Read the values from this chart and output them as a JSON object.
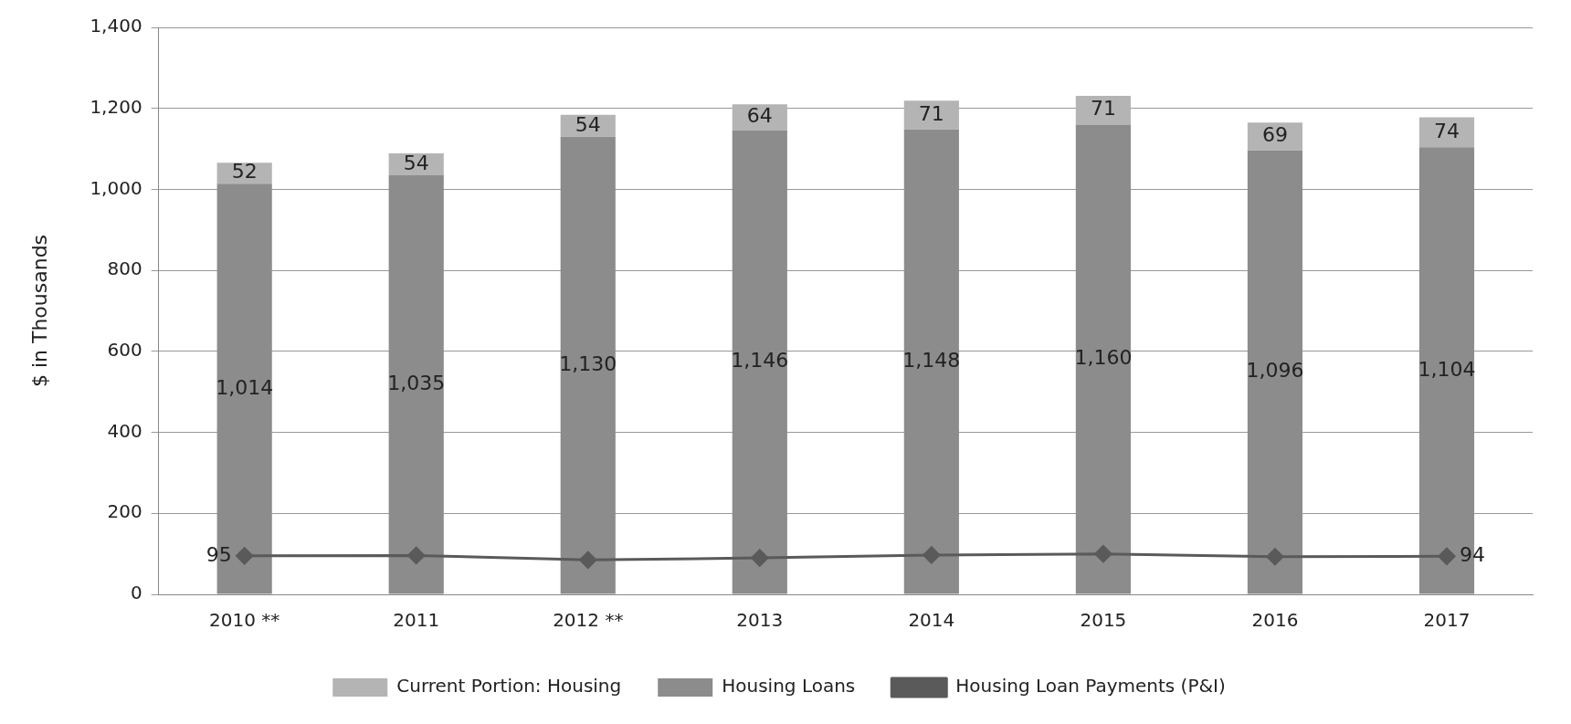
{
  "chart_data": {
    "type": "bar",
    "stacked": true,
    "ylabel": "$ in Thousands",
    "categories": [
      "2010 **",
      "2011",
      "2012 **",
      "2013",
      "2014",
      "2015",
      "2016",
      "2017"
    ],
    "series": [
      {
        "name": "Housing Loans",
        "color": "#8c8c8c",
        "values": [
          1014,
          1035,
          1130,
          1146,
          1148,
          1160,
          1096,
          1104
        ],
        "value_labels": [
          "1,014",
          "1,035",
          "1,130",
          "1,146",
          "1,148",
          "1,160",
          "1,096",
          "1,104"
        ]
      },
      {
        "name": "Current Portion: Housing",
        "color": "#b4b4b4",
        "values": [
          52,
          54,
          54,
          64,
          71,
          71,
          69,
          74
        ],
        "value_labels": [
          "52",
          "54",
          "54",
          "64",
          "71",
          "71",
          "69",
          "74"
        ]
      },
      {
        "name": "Housing Loan Payments (P&I)",
        "type": "line",
        "color": "#5a5a5a",
        "marker": "diamond",
        "values": [
          95,
          96,
          85,
          90,
          97,
          100,
          93,
          94
        ],
        "value_labels": [
          "95",
          null,
          null,
          null,
          null,
          null,
          null,
          "94"
        ]
      }
    ],
    "ylim": [
      0,
      1400
    ],
    "yticks": [
      0,
      {
        "value": 200,
        "label": "200"
      },
      {
        "value": 400,
        "label": "400"
      },
      {
        "value": 600,
        "label": "600"
      },
      {
        "value": 800,
        "label": "800"
      },
      {
        "value": 1000,
        "label": "1,000"
      },
      {
        "value": 1200,
        "label": "1,200"
      },
      {
        "value": 1400,
        "label": "1,400"
      }
    ],
    "grid": "y",
    "legend": "bottom"
  }
}
